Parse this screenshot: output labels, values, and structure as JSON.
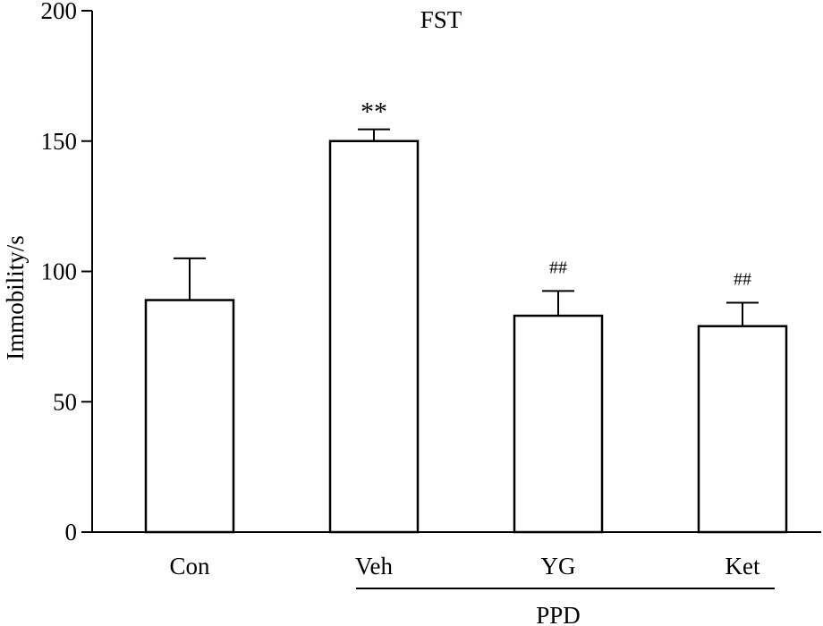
{
  "chart_data": {
    "type": "bar",
    "title": "FST",
    "xlabel": "",
    "ylabel": "Immobility/s",
    "categories": [
      "Con",
      "Veh",
      "YG",
      "Ket"
    ],
    "values": [
      89,
      150,
      83,
      79
    ],
    "errors": [
      16,
      4.5,
      9.5,
      9
    ],
    "annotations": [
      "",
      "**",
      "##",
      "##"
    ],
    "ylim": [
      0,
      200
    ],
    "yticks": [
      0,
      50,
      100,
      150,
      200
    ],
    "group_label": "PPD",
    "group_members": [
      "Veh",
      "YG",
      "Ket"
    ],
    "grid": false,
    "bar_fill": "#ffffff",
    "bar_stroke": "#000000"
  }
}
